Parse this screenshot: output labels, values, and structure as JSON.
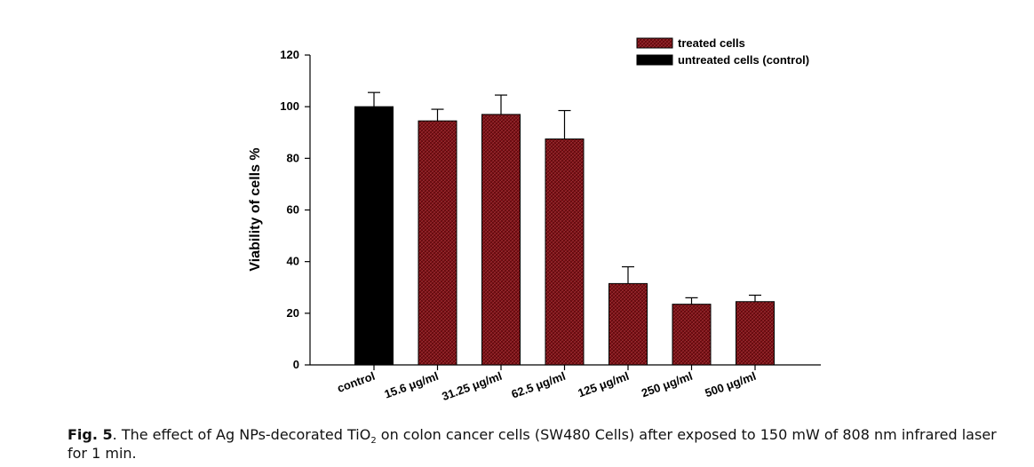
{
  "chart_data": {
    "type": "bar",
    "categories": [
      "control",
      "15.6 μg/ml",
      "31.25 μg/ml",
      "62.5 μg/ml",
      "125 μg/ml",
      "250 μg/ml",
      "500 μg/ml"
    ],
    "series": [
      {
        "name": "untreated cells (control)",
        "values": [
          100,
          null,
          null,
          null,
          null,
          null,
          null
        ],
        "errors": [
          5.5,
          null,
          null,
          null,
          null,
          null,
          null
        ]
      },
      {
        "name": "treated cells",
        "values": [
          null,
          94.5,
          97,
          87.5,
          31.5,
          23.5,
          24.5
        ],
        "errors": [
          null,
          4.5,
          7.5,
          11,
          6.5,
          2.5,
          2.5
        ]
      }
    ],
    "ylabel": "Viability of cells %",
    "xlabel": "",
    "ylim": [
      0,
      120
    ],
    "yticks": [
      0,
      20,
      40,
      60,
      80,
      100,
      120
    ],
    "legend_position": "top-right",
    "grid": false,
    "colors": {
      "treated cells": "#7a0f14",
      "untreated cells (control)": "#000000"
    }
  },
  "caption": {
    "label": "Fig. 5",
    "text_before_sub": ". The effect of Ag NPs-decorated TiO",
    "subscript": "2",
    "text_after_sub": " on colon cancer cells (SW480 Cells) after exposed to 150 mW of 808 nm infrared laser for 1 min."
  }
}
